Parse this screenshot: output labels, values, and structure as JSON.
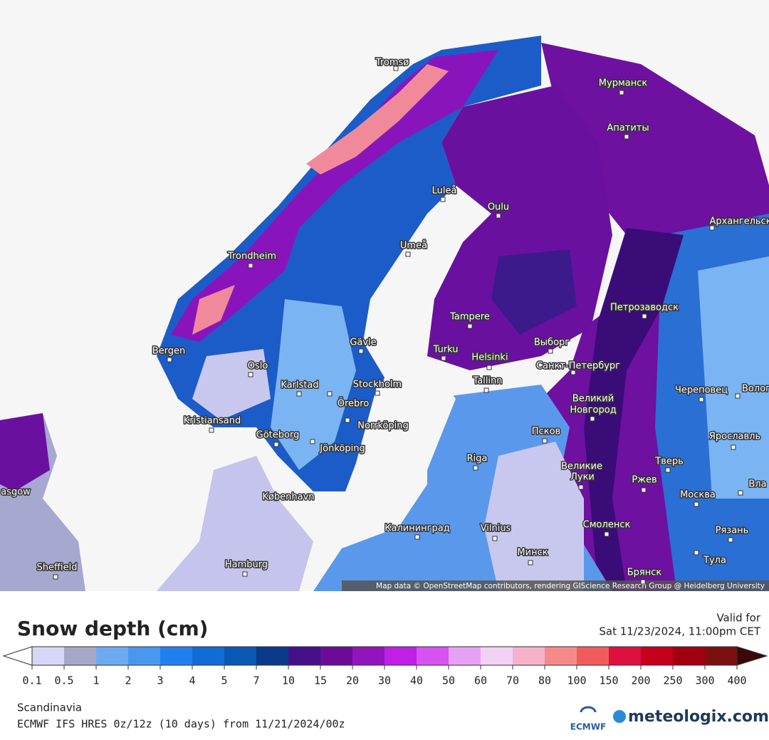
{
  "map": {
    "labels": [
      "Tromsø",
      "Мурманск",
      "Апатиты",
      "Luleå",
      "Oulu",
      "Архангельск",
      "Trondheim",
      "Umeå",
      "Петрозаводск",
      "Tampere",
      "Bergen",
      "Gävle",
      "Turku",
      "Helsinki",
      "Выборг",
      "Oslo",
      "Санкт-Петербург",
      "Karlstad",
      "Stockholm",
      "Tallinn",
      "Örebro",
      "Череповец",
      "Волог",
      "Великий",
      "Новгород",
      "Kristiansand",
      "Göteborg",
      "Norrköping",
      "Псков",
      "Ярославль",
      "Jönköping",
      "Riga",
      "Тверь",
      "Великие",
      "Луки",
      "Ржев",
      "asgow",
      "København",
      "Москва",
      "Вла",
      "Калининград",
      "Vilnius",
      "Смоленск",
      "Рязань",
      "Минск",
      "Тула",
      "Sheffield",
      "Hamburg",
      "Брянск"
    ],
    "attribution": "Map data © OpenStreetMap contributors, rendering GIScience Research Group @ Heidelberg University"
  },
  "legend": {
    "title": "Snow depth (cm)",
    "valid_label": "Valid for",
    "valid_time": "Sat 11/23/2024, 11:00pm CET",
    "ticks": [
      0.1,
      0.5,
      1,
      2,
      3,
      4,
      5,
      7,
      10,
      15,
      20,
      30,
      40,
      50,
      60,
      70,
      80,
      100,
      150,
      200,
      250,
      300,
      400
    ],
    "under_color": "#ffffff",
    "over_color": "#3a0808",
    "colors": [
      "#d6d6f6",
      "#a7a8c8",
      "#6eaaf2",
      "#4898f0",
      "#2080f0",
      "#136cd6",
      "#0b58b4",
      "#0a3a88",
      "#46108a",
      "#6a0c98",
      "#9214bc",
      "#c020e6",
      "#d652f2",
      "#e6a2f2",
      "#f2d2f4",
      "#f6b2c8",
      "#f68a8a",
      "#f05c5c",
      "#de1040",
      "#c4001a",
      "#a00010",
      "#7c1010"
    ]
  },
  "footer": {
    "region": "Scandinavia",
    "model": "ECMWF IFS HRES 0z/12z (10 days) from 11/21/2024/00z",
    "ecmwf": "ECMWF",
    "brand": "meteologix.com"
  }
}
